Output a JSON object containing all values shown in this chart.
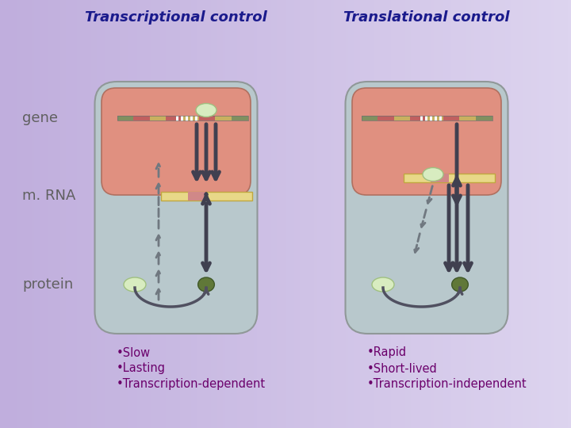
{
  "title_left": "Transcriptional control",
  "title_right": "Translational control",
  "title_color": "#1a1a8c",
  "label_color": "#606060",
  "labels": [
    "gene",
    "m. RNA",
    "protein"
  ],
  "bullet_left": [
    "•Slow",
    "•Lasting",
    "•Transcription-dependent"
  ],
  "bullet_right": [
    "•Rapid",
    "•Short-lived",
    "•Transcription-independent"
  ],
  "bullet_color": "#6b006b",
  "cell_bg": "#b8c8cc",
  "nucleus_bg": "#e09080",
  "cell_border": "#909898",
  "nucleus_border": "#b07060",
  "arrow_color": "#404050",
  "dashed_arrow_color": "#707880",
  "light_circle_color": "#d8ecc0",
  "dark_circle_color": "#607838",
  "curve_color": "#505060",
  "mrna_bar_yellow": "#e8d888",
  "mrna_bar_red": "#d08888",
  "gene_seg_colors": [
    "#809060",
    "#c06060",
    "#c8b060",
    "#c06060",
    "#c8b060",
    "#c06060",
    "#c8b060",
    "#809060"
  ],
  "bg_left": "#c8b8e0",
  "bg_right": "#d8cce8"
}
